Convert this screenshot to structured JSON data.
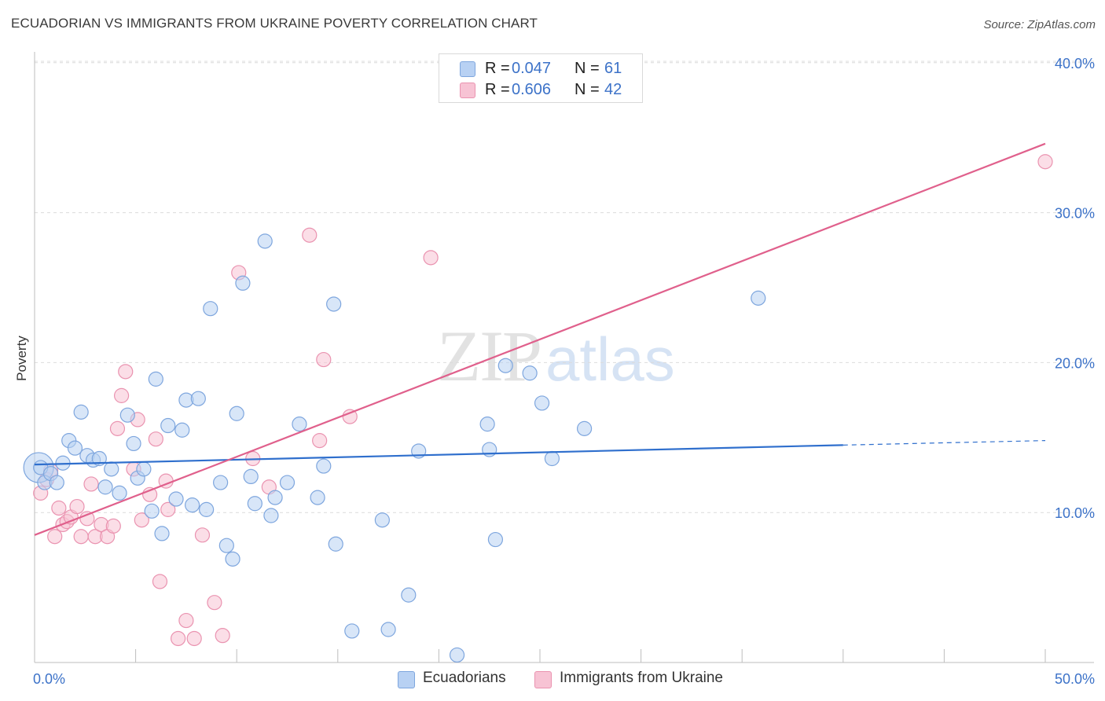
{
  "title": "ECUADORIAN VS IMMIGRANTS FROM UKRAINE POVERTY CORRELATION CHART",
  "source": "Source: ZipAtlas.com",
  "watermark": {
    "part1": "ZIP",
    "part2": "atlas"
  },
  "legend": {
    "rows": [
      {
        "r_label": "R =",
        "r_value": "0.047",
        "n_label": "N =",
        "n_value": "61"
      },
      {
        "r_label": "R =",
        "r_value": "0.606",
        "n_label": "N =",
        "n_value": "42"
      }
    ]
  },
  "bottom_legend": [
    "Ecuadorians",
    "Immigrants from Ukraine"
  ],
  "colors": {
    "ecuadorian_fill": "#b8d1f3",
    "ecuadorian_stroke": "#7ea6de",
    "ecuadorian_line": "#2f6fcd",
    "ukraine_fill": "#f7c3d4",
    "ukraine_stroke": "#ea93b0",
    "ukraine_line": "#e0608c",
    "tick_label": "#3c72c8",
    "grid": "#dcdcdc"
  },
  "chart_data": {
    "type": "scatter",
    "title": "ECUADORIAN VS IMMIGRANTS FROM UKRAINE POVERTY CORRELATION CHART",
    "xlabel": "",
    "ylabel": "Poverty",
    "xlim": [
      0,
      50
    ],
    "ylim": [
      0,
      40
    ],
    "x_tick_labels": [
      "0.0%",
      "50.0%"
    ],
    "y_ticks": [
      10,
      20,
      30,
      40
    ],
    "y_tick_labels": [
      "10.0%",
      "20.0%",
      "30.0%",
      "40.0%"
    ],
    "grid": "horizontal dashed",
    "legend_position": "top-center",
    "series": [
      {
        "name": "Ecuadorians",
        "r": 0.047,
        "n": 61,
        "trend": {
          "x": [
            0,
            40
          ],
          "y": [
            13.2,
            14.5
          ],
          "dashed_extension_to_x": 50,
          "dashed_extension_y": 14.8
        },
        "points": [
          [
            0.3,
            13.0
          ],
          [
            0.5,
            12.0
          ],
          [
            0.8,
            12.6
          ],
          [
            1.1,
            12.0
          ],
          [
            1.4,
            13.3
          ],
          [
            1.7,
            14.8
          ],
          [
            2.0,
            14.3
          ],
          [
            2.3,
            16.7
          ],
          [
            2.6,
            13.8
          ],
          [
            2.9,
            13.5
          ],
          [
            3.2,
            13.6
          ],
          [
            3.5,
            11.7
          ],
          [
            3.8,
            12.9
          ],
          [
            4.2,
            11.3
          ],
          [
            4.6,
            16.5
          ],
          [
            4.9,
            14.6
          ],
          [
            5.1,
            12.3
          ],
          [
            5.4,
            12.9
          ],
          [
            5.8,
            10.1
          ],
          [
            6.0,
            18.9
          ],
          [
            6.3,
            8.6
          ],
          [
            6.6,
            15.8
          ],
          [
            7.0,
            10.9
          ],
          [
            7.3,
            15.5
          ],
          [
            7.5,
            17.5
          ],
          [
            7.8,
            10.5
          ],
          [
            8.1,
            17.6
          ],
          [
            8.5,
            10.2
          ],
          [
            8.7,
            23.6
          ],
          [
            9.2,
            12.0
          ],
          [
            9.5,
            7.8
          ],
          [
            9.8,
            6.9
          ],
          [
            10.0,
            16.6
          ],
          [
            10.3,
            25.3
          ],
          [
            10.7,
            12.4
          ],
          [
            10.9,
            10.6
          ],
          [
            11.4,
            28.1
          ],
          [
            11.7,
            9.8
          ],
          [
            11.9,
            11.0
          ],
          [
            12.5,
            12.0
          ],
          [
            13.1,
            15.9
          ],
          [
            14.0,
            11.0
          ],
          [
            14.3,
            13.1
          ],
          [
            14.8,
            23.9
          ],
          [
            14.9,
            7.9
          ],
          [
            15.7,
            2.1
          ],
          [
            17.2,
            9.5
          ],
          [
            17.5,
            2.2
          ],
          [
            18.5,
            4.5
          ],
          [
            19.0,
            14.1
          ],
          [
            20.9,
            0.5
          ],
          [
            22.4,
            15.9
          ],
          [
            22.5,
            14.2
          ],
          [
            22.8,
            8.2
          ],
          [
            23.3,
            19.8
          ],
          [
            24.5,
            19.3
          ],
          [
            25.1,
            17.3
          ],
          [
            25.6,
            13.6
          ],
          [
            27.2,
            15.6
          ],
          [
            35.8,
            24.3
          ]
        ],
        "large_point": [
          0.2,
          13.0
        ]
      },
      {
        "name": "Immigrants from Ukraine",
        "r": 0.606,
        "n": 42,
        "trend": {
          "x": [
            0,
            50
          ],
          "y": [
            8.5,
            34.6
          ]
        },
        "points": [
          [
            0.3,
            11.3
          ],
          [
            0.6,
            12.2
          ],
          [
            0.8,
            12.8
          ],
          [
            1.0,
            8.4
          ],
          [
            1.2,
            10.3
          ],
          [
            1.4,
            9.2
          ],
          [
            1.6,
            9.4
          ],
          [
            1.8,
            9.7
          ],
          [
            2.1,
            10.4
          ],
          [
            2.3,
            8.4
          ],
          [
            2.6,
            9.6
          ],
          [
            2.8,
            11.9
          ],
          [
            3.0,
            8.4
          ],
          [
            3.3,
            9.2
          ],
          [
            3.6,
            8.4
          ],
          [
            3.9,
            9.1
          ],
          [
            4.1,
            15.6
          ],
          [
            4.3,
            17.8
          ],
          [
            4.5,
            19.4
          ],
          [
            4.9,
            12.9
          ],
          [
            5.1,
            16.2
          ],
          [
            5.3,
            9.5
          ],
          [
            5.7,
            11.2
          ],
          [
            6.0,
            14.9
          ],
          [
            6.2,
            5.4
          ],
          [
            6.5,
            12.1
          ],
          [
            6.6,
            10.2
          ],
          [
            7.1,
            1.6
          ],
          [
            7.5,
            2.8
          ],
          [
            7.9,
            1.6
          ],
          [
            8.3,
            8.5
          ],
          [
            8.9,
            4.0
          ],
          [
            9.3,
            1.8
          ],
          [
            10.1,
            26.0
          ],
          [
            10.8,
            13.6
          ],
          [
            11.6,
            11.7
          ],
          [
            13.6,
            28.5
          ],
          [
            14.1,
            14.8
          ],
          [
            14.3,
            20.2
          ],
          [
            15.6,
            16.4
          ],
          [
            19.6,
            27.0
          ],
          [
            50.0,
            33.4
          ]
        ]
      }
    ]
  }
}
